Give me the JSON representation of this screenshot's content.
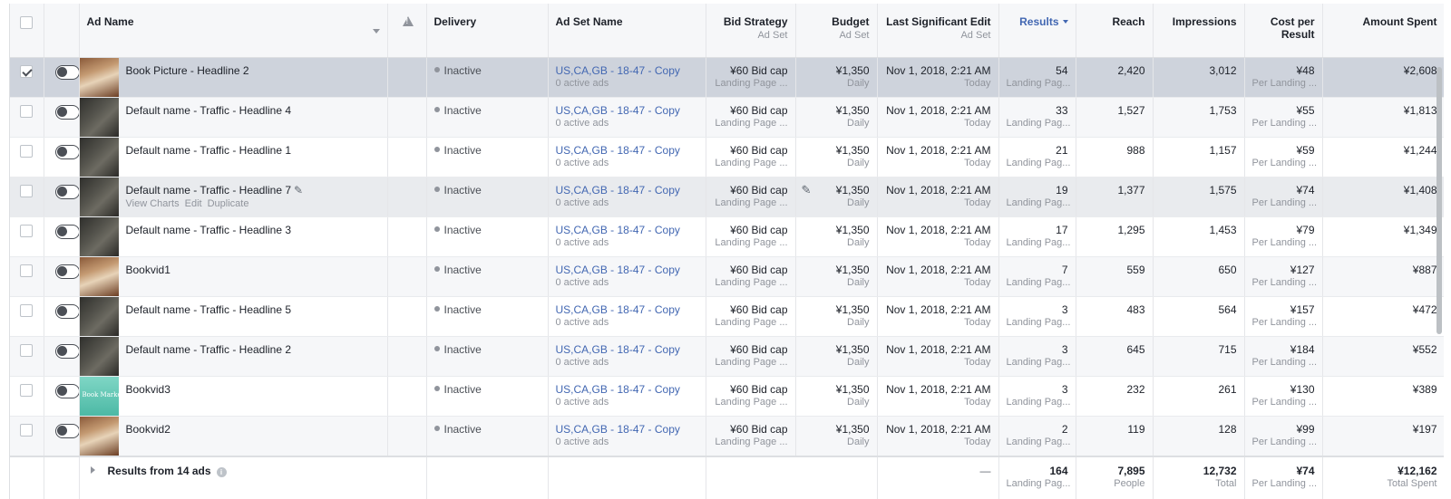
{
  "header": {
    "ad_name": "Ad Name",
    "delivery": "Delivery",
    "ad_set_name": "Ad Set Name",
    "bid_strategy": "Bid Strategy",
    "bid_strategy_sub": "Ad Set",
    "budget": "Budget",
    "budget_sub": "Ad Set",
    "last_edit": "Last Significant Edit",
    "last_edit_sub": "Ad Set",
    "results": "Results",
    "reach": "Reach",
    "impressions": "Impressions",
    "cost_per_result": "Cost per Result",
    "amount_spent": "Amount Spent"
  },
  "rows": [
    {
      "name": "Book Picture - Headline 2",
      "thumb": "book",
      "selected": true,
      "delivery": "Inactive",
      "adset": "US,CA,GB - 18-47 - Copy",
      "adset_sub": "0 active ads",
      "bid": "¥60 Bid cap",
      "bid_sub": "Landing Page ...",
      "budget": "¥1,350",
      "budget_sub": "Daily",
      "edit": "Nov 1, 2018, 2:21 AM",
      "edit_sub": "Today",
      "results": "54",
      "results_sub": "Landing Pag...",
      "reach": "2,420",
      "impressions": "3,012",
      "cpr": "¥48",
      "cpr_sub": "Per Landing ...",
      "spent": "¥2,608"
    },
    {
      "name": "Default name - Traffic - Headline 4",
      "thumb": "dark",
      "delivery": "Inactive",
      "adset": "US,CA,GB - 18-47 - Copy",
      "adset_sub": "0 active ads",
      "bid": "¥60 Bid cap",
      "bid_sub": "Landing Page ...",
      "budget": "¥1,350",
      "budget_sub": "Daily",
      "edit": "Nov 1, 2018, 2:21 AM",
      "edit_sub": "Today",
      "results": "33",
      "results_sub": "Landing Pag...",
      "reach": "1,527",
      "impressions": "1,753",
      "cpr": "¥55",
      "cpr_sub": "Per Landing ...",
      "spent": "¥1,813"
    },
    {
      "name": "Default name - Traffic - Headline 1",
      "thumb": "dark",
      "delivery": "Inactive",
      "adset": "US,CA,GB - 18-47 - Copy",
      "adset_sub": "0 active ads",
      "bid": "¥60 Bid cap",
      "bid_sub": "Landing Page ...",
      "budget": "¥1,350",
      "budget_sub": "Daily",
      "edit": "Nov 1, 2018, 2:21 AM",
      "edit_sub": "Today",
      "results": "21",
      "results_sub": "Landing Pag...",
      "reach": "988",
      "impressions": "1,157",
      "cpr": "¥59",
      "cpr_sub": "Per Landing ...",
      "spent": "¥1,244"
    },
    {
      "name": "Default name - Traffic - Headline 7",
      "thumb": "dark",
      "hovered": true,
      "actions": [
        "View Charts",
        "Edit",
        "Duplicate"
      ],
      "delivery": "Inactive",
      "adset": "US,CA,GB - 18-47 - Copy",
      "adset_sub": "0 active ads",
      "bid": "¥60 Bid cap",
      "bid_sub": "Landing Page ...",
      "budget": "¥1,350",
      "budget_sub": "Daily",
      "edit": "Nov 1, 2018, 2:21 AM",
      "edit_sub": "Today",
      "results": "19",
      "results_sub": "Landing Pag...",
      "reach": "1,377",
      "impressions": "1,575",
      "cpr": "¥74",
      "cpr_sub": "Per Landing ...",
      "spent": "¥1,408"
    },
    {
      "name": "Default name - Traffic - Headline 3",
      "thumb": "dark",
      "delivery": "Inactive",
      "adset": "US,CA,GB - 18-47 - Copy",
      "adset_sub": "0 active ads",
      "bid": "¥60 Bid cap",
      "bid_sub": "Landing Page ...",
      "budget": "¥1,350",
      "budget_sub": "Daily",
      "edit": "Nov 1, 2018, 2:21 AM",
      "edit_sub": "Today",
      "results": "17",
      "results_sub": "Landing Pag...",
      "reach": "1,295",
      "impressions": "1,453",
      "cpr": "¥79",
      "cpr_sub": "Per Landing ...",
      "spent": "¥1,349"
    },
    {
      "name": "Bookvid1",
      "thumb": "book",
      "delivery": "Inactive",
      "adset": "US,CA,GB - 18-47 - Copy",
      "adset_sub": "0 active ads",
      "bid": "¥60 Bid cap",
      "bid_sub": "Landing Page ...",
      "budget": "¥1,350",
      "budget_sub": "Daily",
      "edit": "Nov 1, 2018, 2:21 AM",
      "edit_sub": "Today",
      "results": "7",
      "results_sub": "Landing Pag...",
      "reach": "559",
      "impressions": "650",
      "cpr": "¥127",
      "cpr_sub": "Per Landing ...",
      "spent": "¥887"
    },
    {
      "name": "Default name - Traffic - Headline 5",
      "thumb": "dark",
      "delivery": "Inactive",
      "adset": "US,CA,GB - 18-47 - Copy",
      "adset_sub": "0 active ads",
      "bid": "¥60 Bid cap",
      "bid_sub": "Landing Page ...",
      "budget": "¥1,350",
      "budget_sub": "Daily",
      "edit": "Nov 1, 2018, 2:21 AM",
      "edit_sub": "Today",
      "results": "3",
      "results_sub": "Landing Pag...",
      "reach": "483",
      "impressions": "564",
      "cpr": "¥157",
      "cpr_sub": "Per Landing ...",
      "spent": "¥472"
    },
    {
      "name": "Default name - Traffic - Headline 2",
      "thumb": "dark",
      "delivery": "Inactive",
      "adset": "US,CA,GB - 18-47 - Copy",
      "adset_sub": "0 active ads",
      "bid": "¥60 Bid cap",
      "bid_sub": "Landing Page ...",
      "budget": "¥1,350",
      "budget_sub": "Daily",
      "edit": "Nov 1, 2018, 2:21 AM",
      "edit_sub": "Today",
      "results": "3",
      "results_sub": "Landing Pag...",
      "reach": "645",
      "impressions": "715",
      "cpr": "¥184",
      "cpr_sub": "Per Landing ...",
      "spent": "¥552"
    },
    {
      "name": "Bookvid3",
      "thumb": "teal",
      "thumb_text": "Book Marketing",
      "delivery": "Inactive",
      "adset": "US,CA,GB - 18-47 - Copy",
      "adset_sub": "0 active ads",
      "bid": "¥60 Bid cap",
      "bid_sub": "Landing Page ...",
      "budget": "¥1,350",
      "budget_sub": "Daily",
      "edit": "Nov 1, 2018, 2:21 AM",
      "edit_sub": "Today",
      "results": "3",
      "results_sub": "Landing Pag...",
      "reach": "232",
      "impressions": "261",
      "cpr": "¥130",
      "cpr_sub": "Per Landing ...",
      "spent": "¥389"
    },
    {
      "name": "Bookvid2",
      "thumb": "book",
      "delivery": "Inactive",
      "adset": "US,CA,GB - 18-47 - Copy",
      "adset_sub": "0 active ads",
      "bid": "¥60 Bid cap",
      "bid_sub": "Landing Page ...",
      "budget": "¥1,350",
      "budget_sub": "Daily",
      "edit": "Nov 1, 2018, 2:21 AM",
      "edit_sub": "Today",
      "results": "2",
      "results_sub": "Landing Pag...",
      "reach": "119",
      "impressions": "128",
      "cpr": "¥99",
      "cpr_sub": "Per Landing ...",
      "spent": "¥197"
    }
  ],
  "footer": {
    "label": "Results from 14 ads",
    "last_edit": "—",
    "results": "164",
    "results_sub": "Landing Pag...",
    "reach": "7,895",
    "reach_sub": "People",
    "impressions": "12,732",
    "impressions_sub": "Total",
    "cpr": "¥74",
    "cpr_sub": "Per Landing ...",
    "spent": "¥12,162",
    "spent_sub": "Total Spent"
  },
  "colors": {
    "accent": "#4267b2",
    "selected_row": "#ced3dc"
  }
}
